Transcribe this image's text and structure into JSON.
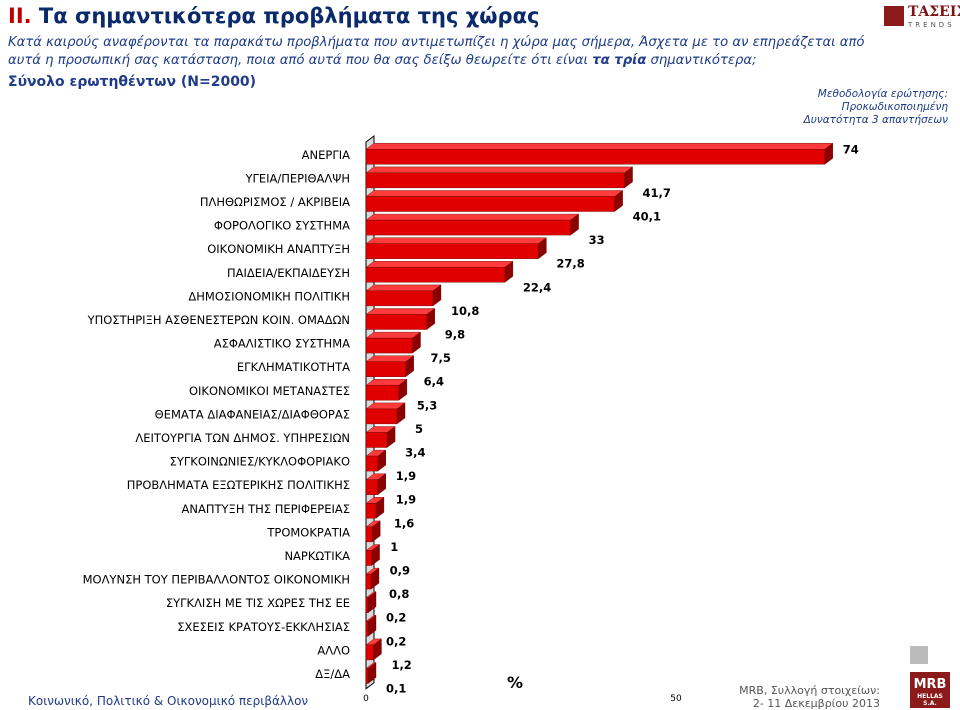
{
  "header": {
    "title_num": "II.",
    "title_text": "Τα σημαντικότερα προβλήματα της χώρας",
    "question_part1": "Κατά καιρούς αναφέρονται τα παρακάτω προβλήματα που αντιμετωπίζει η χώρα μας σήμερα, Άσχετα με το αν επηρεάζεται από αυτά η προσωπική σας κατάσταση, ποια από αυτά που θα σας δείξω θεωρείτε ότι είναι ",
    "question_bold": "τα τρία",
    "question_part2": " σημαντικότερα;",
    "sample": "Σύνολο ερωτηθέντων (Ν=2000)",
    "method_line1": "Μεθοδολογία ερώτησης:",
    "method_line2": "Προκωδικοποιημένη",
    "method_line3": "Δυνατότητα 3 απαντήσεων"
  },
  "logo_top": {
    "word": "ΤΑΣΕΙΣ",
    "sub": "TRENDS"
  },
  "logo_bottom": {
    "word": "MRB",
    "sub": "HELLAS S.A."
  },
  "footer": {
    "left": "Κοινωνικό, Πολιτικό & Οικονομικό περιβάλλον",
    "right_line1": "MRB, Συλλογή στοιχείων:",
    "right_line2": "2- 11 Δεκεμβρίου 2013"
  },
  "colors": {
    "bar_front": "#e00000",
    "bar_top": "#ff3b3b",
    "bar_side": "#8c0000",
    "title": "#0b2a6b",
    "accent": "#c00000"
  },
  "chart_data": {
    "type": "bar",
    "orientation": "horizontal",
    "xlabel": "%",
    "xlim": [
      0,
      80
    ],
    "xticks": [
      "0",
      "50"
    ],
    "categories": [
      "ΑΝΕΡΓΙΑ",
      "ΥΓΕΙΑ/ΠΕΡΙΘΑΛΨΗ",
      "ΠΛΗΘΩΡΙΣΜΟΣ / ΑΚΡΙΒΕΙΑ",
      "ΦΟΡΟΛΟΓΙΚΟ ΣΥΣΤΗΜΑ",
      "ΟΙΚΟΝΟΜΙΚΗ ΑΝΑΠΤΥΞΗ",
      "ΠΑΙΔΕΙΑ/ΕΚΠΑΙΔΕΥΣΗ",
      "ΔΗΜΟΣΙΟΝΟΜΙΚΗ ΠΟΛΙΤΙΚΗ",
      "ΥΠΟΣΤΗΡΙΞΗ ΑΣΘΕΝΕΣΤΕΡΩΝ ΚΟΙΝ. ΟΜΑΔΩΝ",
      "ΑΣΦΑΛΙΣΤΙΚΟ ΣΥΣΤΗΜΑ",
      "ΕΓΚΛΗΜΑΤΙΚΟΤΗΤΑ",
      "ΟΙΚΟΝΟΜΙΚΟΙ ΜΕΤΑΝΑΣΤΕΣ",
      "ΘΕΜΑΤΑ ΔΙΑΦΑΝΕΙΑΣ/ΔΙΑΦΘΟΡΑΣ",
      "ΛΕΙΤΟΥΡΓΙΑ ΤΩΝ ΔΗΜΟΣ. ΥΠΗΡΕΣΙΩΝ",
      "ΣΥΓΚΟΙΝΩΝΙΕΣ/ΚΥΚΛΟΦΟΡΙΑΚΟ",
      "ΠΡΟΒΛΗΜΑΤΑ ΕΞΩΤΕΡΙΚΗΣ ΠΟΛΙΤΙΚΗΣ",
      "ΑΝΑΠΤΥΞΗ ΤΗΣ ΠΕΡΙΦΕΡΕΙΑΣ",
      "ΤΡΟΜΟΚΡΑΤΙΑ",
      "ΝΑΡΚΩΤΙΚΑ",
      "ΜΟΛΥΝΣΗ ΤΟΥ ΠΕΡΙΒΑΛΛΟΝΤΟΣ ΟΙΚΟΝΟΜΙΚΗ",
      "ΣΥΓΚΛΙΣΗ ΜΕ ΤΙΣ ΧΩΡΕΣ ΤΗΣ ΕΕ",
      "ΣΧΕΣΕΙΣ ΚΡΑΤΟΥΣ-ΕΚΚΛΗΣΙΑΣ",
      "ΑΛΛΟ",
      "ΔΞ/ΔΑ"
    ],
    "values": [
      74,
      41.7,
      40.1,
      33,
      27.8,
      22.4,
      10.8,
      9.8,
      7.5,
      6.4,
      5.3,
      5,
      3.4,
      1.9,
      1.9,
      1.6,
      1,
      0.9,
      0.8,
      0.2,
      0.2,
      1.2,
      0.1
    ],
    "value_labels": [
      "74",
      "41,7",
      "40,1",
      "33",
      "27,8",
      "22,4",
      "10,8",
      "9,8",
      "7,5",
      "6,4",
      "5,3",
      "5",
      "3,4",
      "1,9",
      "1,9",
      "1,6",
      "1",
      "0,9",
      "0,8",
      "0,2",
      "0,2",
      "1,2",
      "0,1"
    ]
  }
}
